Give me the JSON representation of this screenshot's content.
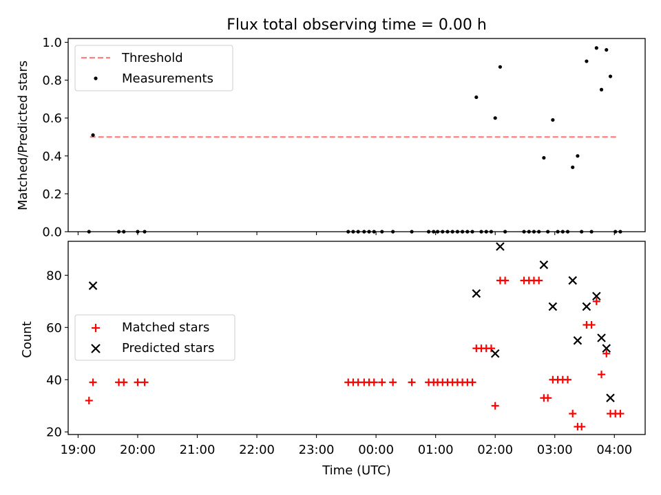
{
  "title": "Flux total observing time = 0.00 h",
  "top": {
    "ylabel": "Matched/Predicted stars",
    "legend": {
      "threshold": "Threshold",
      "measurements": "Measurements"
    }
  },
  "bottom": {
    "ylabel": "Count",
    "xlabel": "Time (UTC)",
    "legend": {
      "matched": "Matched stars",
      "predicted": "Predicted stars"
    }
  },
  "colors": {
    "threshold": "#ff7f7f",
    "matched": "#ff0000",
    "predicted": "#000000",
    "measurement": "#000000"
  },
  "chart_data": [
    {
      "type": "scatter",
      "title": "Flux total observing time = 0.00 h",
      "ylabel": "Matched/Predicted stars",
      "xlim": [
        "18:50",
        "04:31"
      ],
      "ylim": [
        0,
        1.02
      ],
      "yticks": [
        0.0,
        0.2,
        0.4,
        0.6,
        0.8,
        1.0
      ],
      "ytick_labels": [
        "0.0",
        "0.2",
        "0.4",
        "0.6",
        "0.8",
        "1.0"
      ],
      "threshold": {
        "name": "Threshold",
        "value": 0.5,
        "x_start": "19:12",
        "x_end": "04:03",
        "style": "dashed"
      },
      "series": [
        {
          "name": "Measurements",
          "x": [
            "19:11",
            "19:15",
            "19:41",
            "19:46",
            "20:00",
            "20:07",
            "23:32",
            "23:37",
            "23:42",
            "23:48",
            "23:53",
            "23:58",
            "24:06",
            "24:17",
            "24:36",
            "24:53",
            "24:58",
            "25:02",
            "25:07",
            "25:12",
            "25:17",
            "25:22",
            "25:27",
            "25:32",
            "25:37",
            "25:41",
            "25:46",
            "25:51",
            "25:56",
            "26:00",
            "26:05",
            "26:10",
            "26:29",
            "26:34",
            "26:39",
            "26:44",
            "26:49",
            "26:53",
            "26:58",
            "27:03",
            "27:08",
            "27:13",
            "27:18",
            "27:23",
            "27:27",
            "27:32",
            "27:37",
            "27:42",
            "27:47",
            "27:52",
            "27:56",
            "28:01",
            "28:06"
          ],
          "y": [
            0,
            0.51,
            0,
            0,
            0,
            0,
            0,
            0,
            0,
            0,
            0,
            0,
            0,
            0,
            0,
            0,
            0,
            0,
            0,
            0,
            0,
            0,
            0,
            0,
            0,
            0.71,
            0,
            0,
            0,
            0.6,
            0.87,
            0,
            0,
            0,
            0,
            0,
            0.39,
            0,
            0.59,
            0,
            0,
            0,
            0.34,
            0.4,
            0,
            0.9,
            0,
            0.97,
            0.75,
            0.96,
            0.82,
            0,
            0
          ]
        }
      ]
    },
    {
      "type": "scatter",
      "xlabel": "Time (UTC)",
      "ylabel": "Count",
      "xlim": [
        "18:50",
        "04:31"
      ],
      "xticks": [
        "19:00",
        "20:00",
        "21:00",
        "22:00",
        "23:00",
        "00:00",
        "01:00",
        "02:00",
        "03:00",
        "04:00"
      ],
      "ylim": [
        19,
        93
      ],
      "yticks": [
        20,
        40,
        60,
        80
      ],
      "ytick_labels": [
        "20",
        "40",
        "60",
        "80"
      ],
      "series": [
        {
          "name": "Matched stars",
          "marker": "+",
          "x": [
            "19:11",
            "19:15",
            "19:41",
            "19:46",
            "20:00",
            "20:07",
            "23:32",
            "23:37",
            "23:42",
            "23:48",
            "23:53",
            "23:58",
            "24:06",
            "24:17",
            "24:36",
            "24:53",
            "24:58",
            "25:02",
            "25:07",
            "25:12",
            "25:17",
            "25:22",
            "25:27",
            "25:32",
            "25:37",
            "25:41",
            "25:46",
            "25:51",
            "25:56",
            "26:00",
            "26:05",
            "26:10",
            "26:29",
            "26:34",
            "26:39",
            "26:44",
            "26:49",
            "26:53",
            "26:58",
            "27:03",
            "27:08",
            "27:13",
            "27:18",
            "27:23",
            "27:27",
            "27:32",
            "27:37",
            "27:42",
            "27:47",
            "27:52",
            "27:56",
            "28:01",
            "28:06"
          ],
          "y": [
            32,
            39,
            39,
            39,
            39,
            39,
            39,
            39,
            39,
            39,
            39,
            39,
            39,
            39,
            39,
            39,
            39,
            39,
            39,
            39,
            39,
            39,
            39,
            39,
            39,
            52,
            52,
            52,
            52,
            30,
            78,
            78,
            78,
            78,
            78,
            78,
            33,
            33,
            40,
            40,
            40,
            40,
            27,
            22,
            22,
            61,
            61,
            70,
            42,
            50,
            27,
            27,
            27
          ]
        },
        {
          "name": "Predicted stars",
          "marker": "x",
          "x": [
            "19:15",
            "25:41",
            "26:00",
            "26:05",
            "26:49",
            "26:58",
            "27:18",
            "27:23",
            "27:32",
            "27:42",
            "27:47",
            "27:52",
            "27:56"
          ],
          "y": [
            76,
            73,
            50,
            91,
            84,
            68,
            78,
            55,
            68,
            72,
            56,
            52,
            33
          ]
        }
      ]
    }
  ]
}
